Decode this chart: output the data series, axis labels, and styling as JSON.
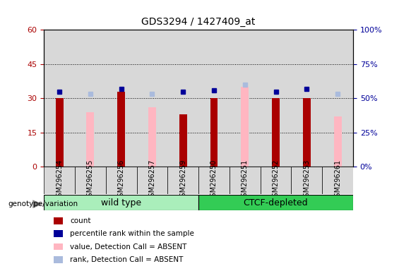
{
  "title": "GDS3294 / 1427409_at",
  "samples": [
    "GSM296254",
    "GSM296255",
    "GSM296256",
    "GSM296257",
    "GSM296259",
    "GSM296250",
    "GSM296251",
    "GSM296252",
    "GSM296253",
    "GSM296261"
  ],
  "count_values": [
    30,
    null,
    33,
    null,
    23,
    30,
    null,
    30,
    30,
    null
  ],
  "value_absent": [
    null,
    24,
    null,
    26,
    null,
    null,
    35,
    null,
    null,
    22
  ],
  "percentile_rank": [
    55,
    null,
    57,
    null,
    55,
    56,
    null,
    55,
    57,
    null
  ],
  "rank_absent": [
    null,
    53,
    null,
    53,
    null,
    null,
    60,
    null,
    null,
    53
  ],
  "ylim_left": [
    0,
    60
  ],
  "ylim_right": [
    0,
    100
  ],
  "yticks_left": [
    0,
    15,
    30,
    45,
    60
  ],
  "ytick_labels_left": [
    "0",
    "15",
    "30",
    "45",
    "60"
  ],
  "yticks_right": [
    0,
    25,
    50,
    75,
    100
  ],
  "ytick_labels_right": [
    "0%",
    "25%",
    "50%",
    "75%",
    "100%"
  ],
  "group1_label": "wild type",
  "group2_label": "CTCF-depleted",
  "group_label_prefix": "genotype/variation",
  "color_count": "#aa0000",
  "color_percentile": "#000099",
  "color_value_absent": "#ffb6c1",
  "color_rank_absent": "#aabbdd",
  "bar_width": 0.25,
  "bg_color": "#d8d8d8",
  "group1_bg": "#aaeebb",
  "group2_bg": "#33cc55",
  "dotted_lines": [
    15,
    30,
    45
  ],
  "legend_items": [
    {
      "label": "count",
      "color": "#aa0000"
    },
    {
      "label": "percentile rank within the sample",
      "color": "#000099"
    },
    {
      "label": "value, Detection Call = ABSENT",
      "color": "#ffb6c1"
    },
    {
      "label": "rank, Detection Call = ABSENT",
      "color": "#aabbdd"
    }
  ]
}
